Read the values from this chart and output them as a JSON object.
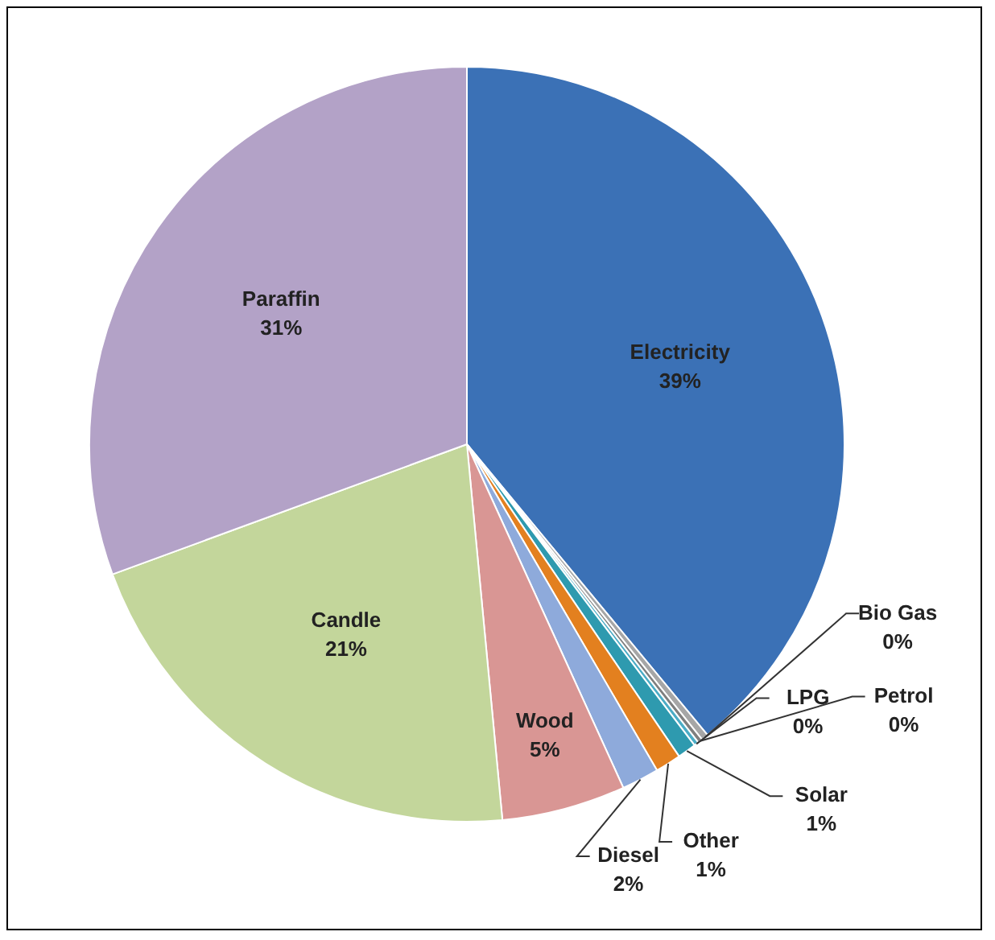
{
  "chart_data": {
    "type": "pie",
    "categories": [
      "Electricity",
      "Bio Gas",
      "Petrol",
      "LPG",
      "Solar",
      "Other",
      "Diesel",
      "Wood",
      "Candle",
      "Paraffin"
    ],
    "values": [
      39,
      0.3,
      0.2,
      0.2,
      0.8,
      1.1,
      1.6,
      5.3,
      20.9,
      30.6
    ],
    "value_labels": [
      "39%",
      "0%",
      "0%",
      "0%",
      "1%",
      "1%",
      "2%",
      "5%",
      "21%",
      "31%"
    ],
    "colors": [
      "#3b71b6",
      "#a6a6a6",
      "#7f7f7f",
      "#4bacc6",
      "#2e9aaf",
      "#e3801f",
      "#8eaadb",
      "#d99694",
      "#c3d69b",
      "#b3a2c7"
    ],
    "legend": false
  }
}
